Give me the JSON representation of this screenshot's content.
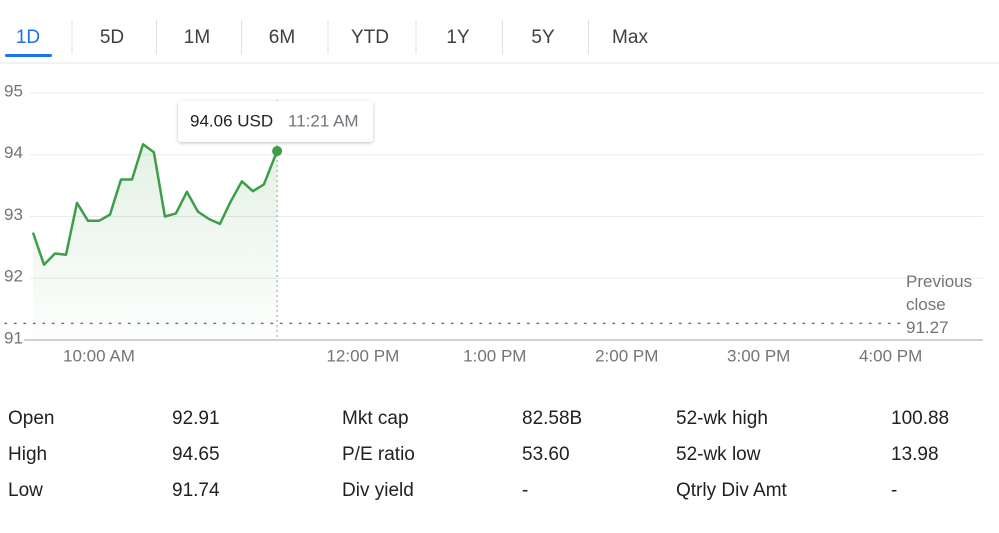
{
  "tabs": [
    "1D",
    "5D",
    "1M",
    "6M",
    "YTD",
    "1Y",
    "5Y",
    "Max"
  ],
  "selected_tab": 0,
  "chart_data": {
    "type": "line",
    "color": "#3c9e48",
    "x": [
      570,
      575,
      580,
      585,
      590,
      595,
      600,
      605,
      610,
      615,
      620,
      625,
      630,
      635,
      640,
      645,
      650,
      655,
      660,
      665,
      670,
      675,
      681
    ],
    "values": [
      92.74,
      92.22,
      92.4,
      92.38,
      93.22,
      92.93,
      92.93,
      93.03,
      93.6,
      93.6,
      94.17,
      94.04,
      93.0,
      93.05,
      93.4,
      93.08,
      92.96,
      92.88,
      93.25,
      93.57,
      93.41,
      93.52,
      94.06
    ],
    "xlim": [
      570,
      1002
    ],
    "xticks": [
      {
        "value": 600,
        "label": "10:00 AM"
      },
      {
        "value": 720,
        "label": "12:00 PM"
      },
      {
        "value": 780,
        "label": "1:00 PM"
      },
      {
        "value": 840,
        "label": "2:00 PM"
      },
      {
        "value": 900,
        "label": "3:00 PM"
      },
      {
        "value": 960,
        "label": "4:00 PM"
      }
    ],
    "ylim": [
      91,
      95
    ],
    "yticks": [
      91,
      92,
      93,
      94,
      95
    ],
    "grid": true,
    "tooltip": {
      "price": "94.06 USD",
      "time": "11:21 AM"
    },
    "previous_close": {
      "label": "Previous close",
      "value": 91.27
    }
  },
  "stats": [
    [
      [
        "Open",
        "92.91"
      ],
      [
        "Mkt cap",
        "82.58B"
      ],
      [
        "52-wk high",
        "100.88"
      ]
    ],
    [
      [
        "High",
        "94.65"
      ],
      [
        "P/E ratio",
        "53.60"
      ],
      [
        "52-wk low",
        "13.98"
      ]
    ],
    [
      [
        "Low",
        "91.74"
      ],
      [
        "Div yield",
        "-"
      ],
      [
        "Qtrly Div Amt",
        "-"
      ]
    ]
  ]
}
